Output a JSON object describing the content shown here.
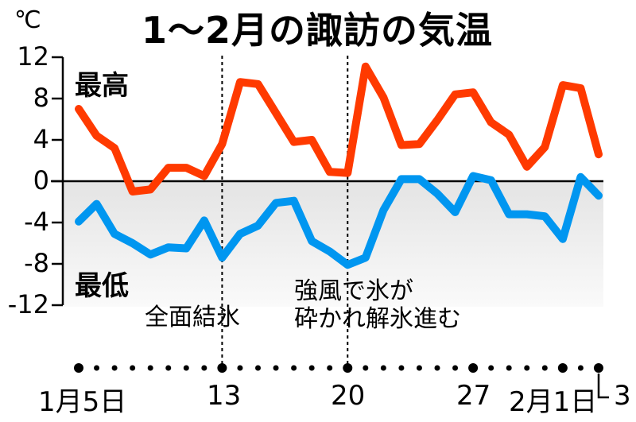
{
  "title": "1〜2月の諏訪の気温",
  "unit": "℃",
  "y_ticks": [
    "12",
    "8",
    "4",
    "0",
    "-4",
    "-8",
    "-12"
  ],
  "series_labels": {
    "max": "最高",
    "min": "最低"
  },
  "annotations": {
    "a1": "全面結氷",
    "a2_line1": "強風で氷が",
    "a2_line2": "砕かれ解氷進む"
  },
  "x_ticks": {
    "t1": "1月5日",
    "t2": "13",
    "t3": "20",
    "t4": "27",
    "t5": "2月1日",
    "t6": "3"
  },
  "colors": {
    "max": "#ff3a00",
    "min": "#0096f0",
    "below_zero_fill_top": "#e4e4e4",
    "below_zero_fill_bottom": "#fafafa"
  },
  "chart_data": {
    "type": "line",
    "title": "1〜2月の諏訪の気温",
    "xlabel": "",
    "ylabel": "℃",
    "ylim": [
      -12,
      12
    ],
    "yticks": [
      12,
      8,
      4,
      0,
      -4,
      -8,
      -12
    ],
    "x": [
      "1/5",
      "1/6",
      "1/7",
      "1/8",
      "1/9",
      "1/10",
      "1/11",
      "1/12",
      "1/13",
      "1/14",
      "1/15",
      "1/16",
      "1/17",
      "1/18",
      "1/19",
      "1/20",
      "1/21",
      "1/22",
      "1/23",
      "1/24",
      "1/25",
      "1/26",
      "1/27",
      "1/28",
      "1/29",
      "1/30",
      "1/31",
      "2/1",
      "2/2",
      "2/3"
    ],
    "xtick_labels": [
      "1月5日",
      "13",
      "20",
      "27",
      "2月1日",
      "3"
    ],
    "series": [
      {
        "name": "最高",
        "color": "#ff3a00",
        "values": [
          7.0,
          4.4,
          3.2,
          -1.0,
          -0.8,
          1.3,
          1.3,
          0.5,
          3.6,
          9.6,
          9.4,
          6.6,
          3.8,
          4.0,
          0.9,
          0.8,
          11.1,
          8.1,
          3.5,
          3.6,
          5.9,
          8.4,
          8.6,
          5.7,
          4.5,
          1.4,
          3.3,
          9.3,
          9.0,
          2.6
        ]
      },
      {
        "name": "最低",
        "color": "#0096f0",
        "values": [
          -3.9,
          -2.2,
          -5.1,
          -6.0,
          -7.1,
          -6.4,
          -6.5,
          -3.8,
          -7.4,
          -5.1,
          -4.3,
          -2.1,
          -1.9,
          -5.8,
          -6.8,
          -8.1,
          -7.4,
          -2.8,
          0.2,
          0.2,
          -1.2,
          -3.0,
          0.5,
          0.1,
          -3.2,
          -3.2,
          -3.4,
          -5.6,
          0.4,
          -1.4
        ]
      }
    ],
    "annotations": [
      {
        "x": "1/13",
        "text": "全面結氷",
        "marker": "dotted vertical line"
      },
      {
        "x": "1/20",
        "text": "強風で氷が砕かれ解氷進む",
        "marker": "dotted vertical line"
      }
    ],
    "grid": false,
    "legend": "inline labels (最高 top-left, 最低 lower-left)",
    "below_zero_shaded": true
  }
}
